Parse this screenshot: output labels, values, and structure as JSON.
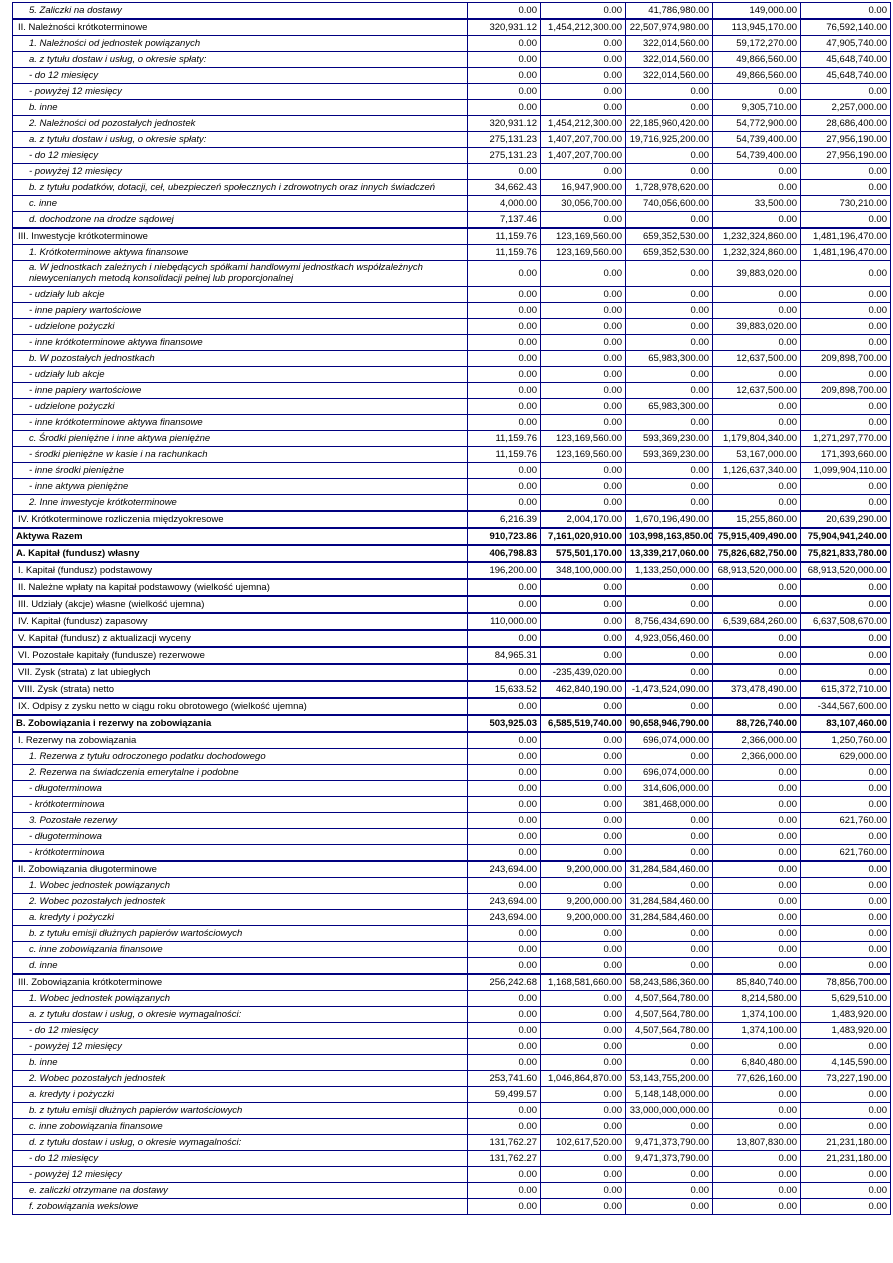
{
  "colors": {
    "border": "#000080",
    "text": "#000000",
    "background": "#ffffff"
  },
  "table": {
    "column_count": 6,
    "numeric_column_count": 5,
    "rows": [
      {
        "label": "5. Zaliczki na dostawy",
        "style": "sub",
        "values": [
          "0.00",
          "0.00",
          "41,786,980.00",
          "149,000.00",
          "0.00"
        ]
      },
      {
        "label": "II. Należności krótkoterminowe",
        "style": "section",
        "values": [
          "320,931.12",
          "1,454,212,300.00",
          "22,507,974,980.00",
          "113,945,170.00",
          "76,592,140.00"
        ]
      },
      {
        "label": "1. Należności od jednostek powiązanych",
        "style": "sub",
        "values": [
          "0.00",
          "0.00",
          "322,014,560.00",
          "59,172,270.00",
          "47,905,740.00"
        ]
      },
      {
        "label": "a. z tytułu dostaw i usług, o okresie spłaty:",
        "style": "sub",
        "values": [
          "0.00",
          "0.00",
          "322,014,560.00",
          "49,866,560.00",
          "45,648,740.00"
        ]
      },
      {
        "label": "- do 12 miesięcy",
        "style": "sub",
        "values": [
          "0.00",
          "0.00",
          "322,014,560.00",
          "49,866,560.00",
          "45,648,740.00"
        ]
      },
      {
        "label": "- powyżej 12 miesięcy",
        "style": "sub",
        "values": [
          "0.00",
          "0.00",
          "0.00",
          "0.00",
          "0.00"
        ]
      },
      {
        "label": "b. inne",
        "style": "sub",
        "values": [
          "0.00",
          "0.00",
          "0.00",
          "9,305,710.00",
          "2,257,000.00"
        ]
      },
      {
        "label": "2. Należności od pozostałych jednostek",
        "style": "sub",
        "values": [
          "320,931.12",
          "1,454,212,300.00",
          "22,185,960,420.00",
          "54,772,900.00",
          "28,686,400.00"
        ]
      },
      {
        "label": "a. z tytułu dostaw i usług, o okresie spłaty:",
        "style": "sub",
        "values": [
          "275,131.23",
          "1,407,207,700.00",
          "19,716,925,200.00",
          "54,739,400.00",
          "27,956,190.00"
        ]
      },
      {
        "label": "- do 12 miesięcy",
        "style": "sub",
        "values": [
          "275,131.23",
          "1,407,207,700.00",
          "0.00",
          "54,739,400.00",
          "27,956,190.00"
        ]
      },
      {
        "label": "- powyżej 12 miesięcy",
        "style": "sub",
        "values": [
          "0.00",
          "0.00",
          "0.00",
          "0.00",
          "0.00"
        ]
      },
      {
        "label": "b. z tytułu podatków, dotacji, ceł, ubezpieczeń społecznych i zdrowotnych oraz innych świadczeń",
        "style": "sub",
        "values": [
          "34,662.43",
          "16,947,900.00",
          "1,728,978,620.00",
          "0.00",
          "0.00"
        ]
      },
      {
        "label": "c. inne",
        "style": "sub",
        "values": [
          "4,000.00",
          "30,056,700.00",
          "740,056,600.00",
          "33,500.00",
          "730,210.00"
        ]
      },
      {
        "label": "d. dochodzone na drodze sądowej",
        "style": "sub",
        "values": [
          "7,137.46",
          "0.00",
          "0.00",
          "0.00",
          "0.00"
        ]
      },
      {
        "label": "III. Inwestycje krótkoterminowe",
        "style": "section",
        "values": [
          "11,159.76",
          "123,169,560.00",
          "659,352,530.00",
          "1,232,324,860.00",
          "1,481,196,470.00"
        ]
      },
      {
        "label": "1. Krótkoterminowe aktywa finansowe",
        "style": "sub",
        "values": [
          "11,159.76",
          "123,169,560.00",
          "659,352,530.00",
          "1,232,324,860.00",
          "1,481,196,470.00"
        ]
      },
      {
        "label": "a. W jednostkach zależnych i niebędących spółkami handlowymi jednostkach współzależnych niewycenianych metodą konsolidacji pełnej lub proporcjonalnej",
        "style": "sub-wrap",
        "values": [
          "0.00",
          "0.00",
          "0.00",
          "39,883,020.00",
          "0.00"
        ]
      },
      {
        "label": "- udziały lub akcje",
        "style": "sub",
        "values": [
          "0.00",
          "0.00",
          "0.00",
          "0.00",
          "0.00"
        ]
      },
      {
        "label": "- inne papiery wartościowe",
        "style": "sub",
        "values": [
          "0.00",
          "0.00",
          "0.00",
          "0.00",
          "0.00"
        ]
      },
      {
        "label": "- udzielone pożyczki",
        "style": "sub",
        "values": [
          "0.00",
          "0.00",
          "0.00",
          "39,883,020.00",
          "0.00"
        ]
      },
      {
        "label": "- inne krótkoterminowe aktywa finansowe",
        "style": "sub",
        "values": [
          "0.00",
          "0.00",
          "0.00",
          "0.00",
          "0.00"
        ]
      },
      {
        "label": "b. W pozostałych jednostkach",
        "style": "sub",
        "values": [
          "0.00",
          "0.00",
          "65,983,300.00",
          "12,637,500.00",
          "209,898,700.00"
        ]
      },
      {
        "label": "- udziały lub akcje",
        "style": "sub",
        "values": [
          "0.00",
          "0.00",
          "0.00",
          "0.00",
          "0.00"
        ]
      },
      {
        "label": "- inne papiery wartościowe",
        "style": "sub",
        "values": [
          "0.00",
          "0.00",
          "0.00",
          "12,637,500.00",
          "209,898,700.00"
        ]
      },
      {
        "label": "- udzielone pożyczki",
        "style": "sub",
        "values": [
          "0.00",
          "0.00",
          "65,983,300.00",
          "0.00",
          "0.00"
        ]
      },
      {
        "label": "- inne krótkoterminowe aktywa finansowe",
        "style": "sub",
        "values": [
          "0.00",
          "0.00",
          "0.00",
          "0.00",
          "0.00"
        ]
      },
      {
        "label": "c. Środki pieniężne i inne aktywa pieniężne",
        "style": "sub",
        "values": [
          "11,159.76",
          "123,169,560.00",
          "593,369,230.00",
          "1,179,804,340.00",
          "1,271,297,770.00"
        ]
      },
      {
        "label": "- środki pieniężne w kasie i na rachunkach",
        "style": "sub",
        "values": [
          "11,159.76",
          "123,169,560.00",
          "593,369,230.00",
          "53,167,000.00",
          "171,393,660.00"
        ]
      },
      {
        "label": "- inne środki pieniężne",
        "style": "sub",
        "values": [
          "0.00",
          "0.00",
          "0.00",
          "1,126,637,340.00",
          "1,099,904,110.00"
        ]
      },
      {
        "label": "- inne aktywa pieniężne",
        "style": "sub",
        "values": [
          "0.00",
          "0.00",
          "0.00",
          "0.00",
          "0.00"
        ]
      },
      {
        "label": "2. Inne inwestycje krótkoterminowe",
        "style": "sub",
        "values": [
          "0.00",
          "0.00",
          "0.00",
          "0.00",
          "0.00"
        ]
      },
      {
        "label": "IV. Krótkoterminowe rozliczenia międzyokresowe",
        "style": "section",
        "values": [
          "6,216.39",
          "2,004,170.00",
          "1,670,196,490.00",
          "15,255,860.00",
          "20,639,290.00"
        ]
      },
      {
        "label": "Aktywa Razem",
        "style": "total",
        "values": [
          "910,723.86",
          "7,161,020,910.00",
          "103,998,163,850.00",
          "75,915,409,490.00",
          "75,904,941,240.00"
        ]
      },
      {
        "label": "A. Kapitał (fundusz) własny",
        "style": "total",
        "values": [
          "406,798.83",
          "575,501,170.00",
          "13,339,217,060.00",
          "75,826,682,750.00",
          "75,821,833,780.00"
        ]
      },
      {
        "label": "I. Kapitał (fundusz) podstawowy",
        "style": "section",
        "values": [
          "196,200.00",
          "348,100,000.00",
          "1,133,250,000.00",
          "68,913,520,000.00",
          "68,913,520,000.00"
        ]
      },
      {
        "label": "II. Należne wpłaty na kapitał podstawowy (wielkość ujemna)",
        "style": "section",
        "values": [
          "0.00",
          "0.00",
          "0.00",
          "0.00",
          "0.00"
        ]
      },
      {
        "label": "III. Udziały (akcje) własne (wielkość ujemna)",
        "style": "section",
        "values": [
          "0.00",
          "0.00",
          "0.00",
          "0.00",
          "0.00"
        ]
      },
      {
        "label": "IV. Kapitał (fundusz) zapasowy",
        "style": "section",
        "values": [
          "110,000.00",
          "0.00",
          "8,756,434,690.00",
          "6,539,684,260.00",
          "6,637,508,670.00"
        ]
      },
      {
        "label": "V. Kapitał (fundusz) z aktualizacji wyceny",
        "style": "section",
        "values": [
          "0.00",
          "0.00",
          "4,923,056,460.00",
          "0.00",
          "0.00"
        ]
      },
      {
        "label": "VI. Pozostałe kapitały (fundusze) rezerwowe",
        "style": "section",
        "values": [
          "84,965.31",
          "0.00",
          "0.00",
          "0.00",
          "0.00"
        ]
      },
      {
        "label": "VII. Zysk (strata) z lat ubiegłych",
        "style": "section",
        "values": [
          "0.00",
          "-235,439,020.00",
          "0.00",
          "0.00",
          "0.00"
        ]
      },
      {
        "label": "VIII. Zysk (strata) netto",
        "style": "section",
        "values": [
          "15,633.52",
          "462,840,190.00",
          "-1,473,524,090.00",
          "373,478,490.00",
          "615,372,710.00"
        ]
      },
      {
        "label": "IX. Odpisy z zysku netto w ciągu roku obrotowego (wielkość ujemna)",
        "style": "section",
        "values": [
          "0.00",
          "0.00",
          "0.00",
          "0.00",
          "-344,567,600.00"
        ]
      },
      {
        "label": "B. Zobowiązania i rezerwy na zobowiązania",
        "style": "total",
        "values": [
          "503,925.03",
          "6,585,519,740.00",
          "90,658,946,790.00",
          "88,726,740.00",
          "83,107,460.00"
        ]
      },
      {
        "label": "I. Rezerwy na zobowiązania",
        "style": "section",
        "values": [
          "0.00",
          "0.00",
          "696,074,000.00",
          "2,366,000.00",
          "1,250,760.00"
        ]
      },
      {
        "label": "1. Rezerwa z tytułu odroczonego podatku dochodowego",
        "style": "sub",
        "values": [
          "0.00",
          "0.00",
          "0.00",
          "2,366,000.00",
          "629,000.00"
        ]
      },
      {
        "label": "2. Rezerwa na świadczenia emerytalne i podobne",
        "style": "sub",
        "values": [
          "0.00",
          "0.00",
          "696,074,000.00",
          "0.00",
          "0.00"
        ]
      },
      {
        "label": "- długoterminowa",
        "style": "sub",
        "values": [
          "0.00",
          "0.00",
          "314,606,000.00",
          "0.00",
          "0.00"
        ]
      },
      {
        "label": "- krótkoterminowa",
        "style": "sub",
        "values": [
          "0.00",
          "0.00",
          "381,468,000.00",
          "0.00",
          "0.00"
        ]
      },
      {
        "label": "3. Pozostałe rezerwy",
        "style": "sub",
        "values": [
          "0.00",
          "0.00",
          "0.00",
          "0.00",
          "621,760.00"
        ]
      },
      {
        "label": "- długoterminowa",
        "style": "sub",
        "values": [
          "0.00",
          "0.00",
          "0.00",
          "0.00",
          "0.00"
        ]
      },
      {
        "label": "- krótkoterminowa",
        "style": "sub",
        "values": [
          "0.00",
          "0.00",
          "0.00",
          "0.00",
          "621,760.00"
        ]
      },
      {
        "label": "II. Zobowiązania długoterminowe",
        "style": "section",
        "values": [
          "243,694.00",
          "9,200,000.00",
          "31,284,584,460.00",
          "0.00",
          "0.00"
        ]
      },
      {
        "label": "1. Wobec jednostek powiązanych",
        "style": "sub",
        "values": [
          "0.00",
          "0.00",
          "0.00",
          "0.00",
          "0.00"
        ]
      },
      {
        "label": "2. Wobec pozostałych jednostek",
        "style": "sub",
        "values": [
          "243,694.00",
          "9,200,000.00",
          "31,284,584,460.00",
          "0.00",
          "0.00"
        ]
      },
      {
        "label": "a. kredyty i pożyczki",
        "style": "sub",
        "values": [
          "243,694.00",
          "9,200,000.00",
          "31,284,584,460.00",
          "0.00",
          "0.00"
        ]
      },
      {
        "label": "b. z tytułu emisji dłużnych papierów wartościowych",
        "style": "sub",
        "values": [
          "0.00",
          "0.00",
          "0.00",
          "0.00",
          "0.00"
        ]
      },
      {
        "label": "c. inne zobowiązania finansowe",
        "style": "sub",
        "values": [
          "0.00",
          "0.00",
          "0.00",
          "0.00",
          "0.00"
        ]
      },
      {
        "label": "d. inne",
        "style": "sub",
        "values": [
          "0.00",
          "0.00",
          "0.00",
          "0.00",
          "0.00"
        ]
      },
      {
        "label": "III. Zobowiązania krótkoterminowe",
        "style": "section",
        "values": [
          "256,242.68",
          "1,168,581,660.00",
          "58,243,586,360.00",
          "85,840,740.00",
          "78,856,700.00"
        ]
      },
      {
        "label": "1. Wobec jednostek powiązanych",
        "style": "sub",
        "values": [
          "0.00",
          "0.00",
          "4,507,564,780.00",
          "8,214,580.00",
          "5,629,510.00"
        ]
      },
      {
        "label": "a. z tytułu dostaw i usług, o okresie wymagalności:",
        "style": "sub",
        "values": [
          "0.00",
          "0.00",
          "4,507,564,780.00",
          "1,374,100.00",
          "1,483,920.00"
        ]
      },
      {
        "label": "- do 12 miesięcy",
        "style": "sub",
        "values": [
          "0.00",
          "0.00",
          "4,507,564,780.00",
          "1,374,100.00",
          "1,483,920.00"
        ]
      },
      {
        "label": "- powyżej 12 miesięcy",
        "style": "sub",
        "values": [
          "0.00",
          "0.00",
          "0.00",
          "0.00",
          "0.00"
        ]
      },
      {
        "label": "b. inne",
        "style": "sub",
        "values": [
          "0.00",
          "0.00",
          "0.00",
          "6,840,480.00",
          "4,145,590.00"
        ]
      },
      {
        "label": "2. Wobec pozostałych jednostek",
        "style": "sub",
        "values": [
          "253,741.60",
          "1,046,864,870.00",
          "53,143,755,200.00",
          "77,626,160.00",
          "73,227,190.00"
        ]
      },
      {
        "label": "a. kredyty i pożyczki",
        "style": "sub",
        "values": [
          "59,499.57",
          "0.00",
          "5,148,148,000.00",
          "0.00",
          "0.00"
        ]
      },
      {
        "label": "b. z tytułu emisji dłużnych papierów wartościowych",
        "style": "sub",
        "values": [
          "0.00",
          "0.00",
          "33,000,000,000.00",
          "0.00",
          "0.00"
        ]
      },
      {
        "label": "c. inne zobowiązania finansowe",
        "style": "sub",
        "values": [
          "0.00",
          "0.00",
          "0.00",
          "0.00",
          "0.00"
        ]
      },
      {
        "label": "d. z tytułu dostaw i usług, o okresie wymagalności:",
        "style": "sub",
        "values": [
          "131,762.27",
          "102,617,520.00",
          "9,471,373,790.00",
          "13,807,830.00",
          "21,231,180.00"
        ]
      },
      {
        "label": "- do 12 miesięcy",
        "style": "sub",
        "values": [
          "131,762.27",
          "0.00",
          "9,471,373,790.00",
          "0.00",
          "21,231,180.00"
        ]
      },
      {
        "label": "- powyżej 12 miesięcy",
        "style": "sub",
        "values": [
          "0.00",
          "0.00",
          "0.00",
          "0.00",
          "0.00"
        ]
      },
      {
        "label": "e. zaliczki otrzymane na dostawy",
        "style": "sub",
        "values": [
          "0.00",
          "0.00",
          "0.00",
          "0.00",
          "0.00"
        ]
      },
      {
        "label": "f. zobowiązania wekslowe",
        "style": "sub",
        "values": [
          "0.00",
          "0.00",
          "0.00",
          "0.00",
          "0.00"
        ]
      }
    ]
  }
}
